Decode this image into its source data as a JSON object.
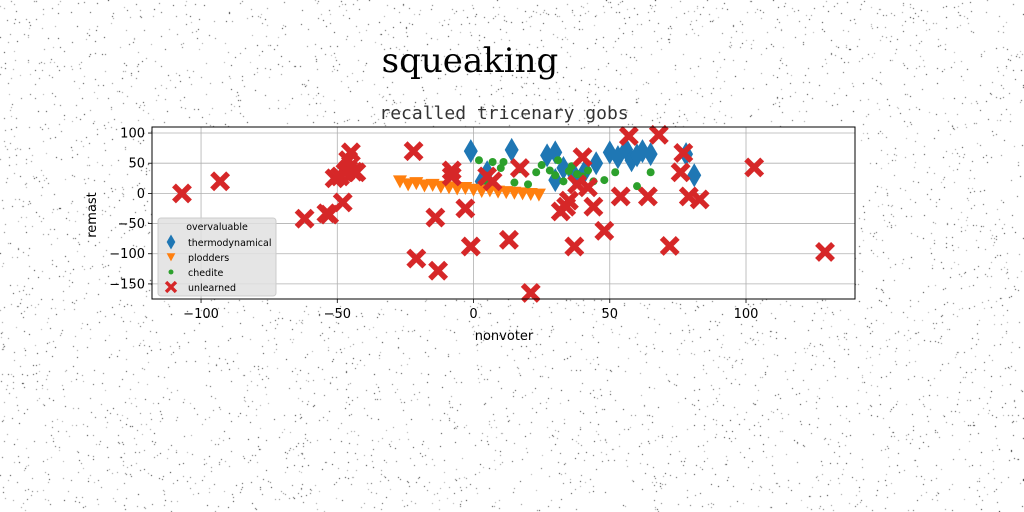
{
  "chart_data": {
    "type": "scatter",
    "suptitle": "squeaking",
    "title": "recalled tricenary gobs",
    "xlabel": "nonvoter",
    "ylabel": "remast",
    "xlim": [
      -118,
      140
    ],
    "ylim": [
      -175,
      110
    ],
    "xticks": [
      -100,
      -50,
      0,
      50,
      100
    ],
    "yticks": [
      -150,
      -100,
      -50,
      0,
      50,
      100
    ],
    "grid": true,
    "legend": {
      "title": "overvaluable",
      "position": "lower-left"
    },
    "series": [
      {
        "name": "thermodynamical",
        "marker": "diamond",
        "color": "#1f77b4",
        "points": [
          [
            -1,
            70
          ],
          [
            3,
            20
          ],
          [
            5,
            35
          ],
          [
            14,
            72
          ],
          [
            27,
            63
          ],
          [
            30,
            68
          ],
          [
            33,
            42
          ],
          [
            37,
            30
          ],
          [
            41,
            38
          ],
          [
            50,
            68
          ],
          [
            53,
            60
          ],
          [
            56,
            73
          ],
          [
            58,
            55
          ],
          [
            60,
            63
          ],
          [
            62,
            70
          ],
          [
            65,
            65
          ],
          [
            78,
            65
          ],
          [
            81,
            30
          ],
          [
            45,
            50
          ],
          [
            30,
            22
          ]
        ]
      },
      {
        "name": "plodders",
        "marker": "triangle-down",
        "color": "#ff7f0e",
        "points": [
          [
            -27,
            20
          ],
          [
            -24,
            15
          ],
          [
            -21,
            17
          ],
          [
            -18,
            13
          ],
          [
            -15,
            14
          ],
          [
            -12,
            11
          ],
          [
            -9,
            10
          ],
          [
            -6,
            8
          ],
          [
            -3,
            9
          ],
          [
            0,
            6
          ],
          [
            3,
            4
          ],
          [
            6,
            5
          ],
          [
            9,
            3
          ],
          [
            12,
            2
          ],
          [
            15,
            1
          ],
          [
            18,
            0
          ],
          [
            21,
            -1
          ],
          [
            24,
            -2
          ]
        ]
      },
      {
        "name": "chedite",
        "marker": "circle",
        "color": "#2ca02c",
        "points": [
          [
            2,
            55
          ],
          [
            7,
            52
          ],
          [
            10,
            42
          ],
          [
            11,
            52
          ],
          [
            17,
            40
          ],
          [
            20,
            15
          ],
          [
            23,
            35
          ],
          [
            25,
            47
          ],
          [
            28,
            38
          ],
          [
            30,
            30
          ],
          [
            31,
            55
          ],
          [
            33,
            20
          ],
          [
            35,
            37
          ],
          [
            36,
            45
          ],
          [
            38,
            32
          ],
          [
            40,
            28
          ],
          [
            42,
            38
          ],
          [
            44,
            20
          ],
          [
            52,
            35
          ],
          [
            60,
            12
          ],
          [
            65,
            35
          ],
          [
            5,
            20
          ],
          [
            15,
            18
          ],
          [
            48,
            22
          ]
        ]
      },
      {
        "name": "unlearned",
        "marker": "x",
        "color": "#d62728",
        "points": [
          [
            -107,
            0
          ],
          [
            -93,
            20
          ],
          [
            -62,
            -42
          ],
          [
            -54,
            -33
          ],
          [
            -53,
            -35
          ],
          [
            -51,
            25
          ],
          [
            -49,
            28
          ],
          [
            -48,
            -15
          ],
          [
            -47,
            35
          ],
          [
            -46,
            40
          ],
          [
            -46,
            55
          ],
          [
            -45,
            68
          ],
          [
            -44,
            36
          ],
          [
            -43,
            35
          ],
          [
            -22,
            70
          ],
          [
            -21,
            -108
          ],
          [
            -13,
            -128
          ],
          [
            -14,
            -40
          ],
          [
            -8,
            38
          ],
          [
            -8,
            28
          ],
          [
            -3,
            -25
          ],
          [
            -1,
            -88
          ],
          [
            5,
            28
          ],
          [
            7,
            20
          ],
          [
            13,
            -77
          ],
          [
            17,
            42
          ],
          [
            21,
            -165
          ],
          [
            32,
            -30
          ],
          [
            34,
            -22
          ],
          [
            35,
            -12
          ],
          [
            37,
            -88
          ],
          [
            38,
            15
          ],
          [
            40,
            60
          ],
          [
            42,
            10
          ],
          [
            44,
            -22
          ],
          [
            48,
            -62
          ],
          [
            54,
            -5
          ],
          [
            57,
            95
          ],
          [
            64,
            -5
          ],
          [
            68,
            97
          ],
          [
            72,
            -87
          ],
          [
            76,
            35
          ],
          [
            77,
            67
          ],
          [
            79,
            -5
          ],
          [
            83,
            -10
          ],
          [
            103,
            43
          ],
          [
            129,
            -97
          ]
        ]
      }
    ]
  }
}
